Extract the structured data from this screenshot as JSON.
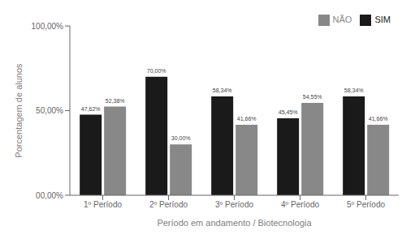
{
  "chart_data": {
    "type": "bar",
    "categories": [
      "1º Período",
      "2º Período",
      "3º Período",
      "4º Período",
      "5º Período"
    ],
    "series": [
      {
        "name": "SIM",
        "color": "#1a1a1a",
        "values": [
          47.62,
          70.0,
          58.34,
          45.45,
          58.34
        ],
        "value_labels": [
          "47,62%",
          "70,00%",
          "58,34%",
          "45,45%",
          "58,34%"
        ]
      },
      {
        "name": "NÃO",
        "color": "#888888",
        "values": [
          52.38,
          30.0,
          41.66,
          54.55,
          41.66
        ],
        "value_labels": [
          "52,38%",
          "30,00%",
          "41,66%",
          "54,55%",
          "41,66%"
        ]
      }
    ],
    "xlabel": "Período em andamento / Biotecnologia",
    "ylabel": "Porcentagem de alunos",
    "ylim": [
      0,
      100
    ],
    "yticks": [
      {
        "value": 0,
        "label": "00,00%"
      },
      {
        "value": 50,
        "label": "50,00%"
      },
      {
        "value": 100,
        "label": "100,00%"
      }
    ],
    "data_labels": true,
    "grid": false,
    "legend": "upper right"
  }
}
